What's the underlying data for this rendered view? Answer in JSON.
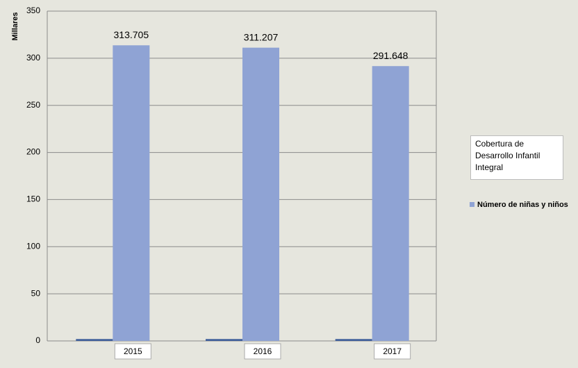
{
  "chart_data": {
    "type": "bar",
    "annotation": "Cobertura de Desarrollo Infantil Integral",
    "y_label": "Millares",
    "categories": [
      "2015",
      "2016",
      "2017"
    ],
    "series": [
      {
        "color": "#3f5f9a",
        "values": [
          2,
          2,
          2
        ]
      },
      {
        "name": "Número de niñas y niños",
        "color": "#8fa3d4",
        "values": [
          313.705,
          311.207,
          291.648
        ]
      }
    ],
    "ylim": [
      0,
      350
    ],
    "yticks": [
      0,
      50,
      100,
      150,
      200,
      250,
      300,
      350
    ],
    "grid": true,
    "show_value_labels": [
      false,
      true
    ]
  }
}
